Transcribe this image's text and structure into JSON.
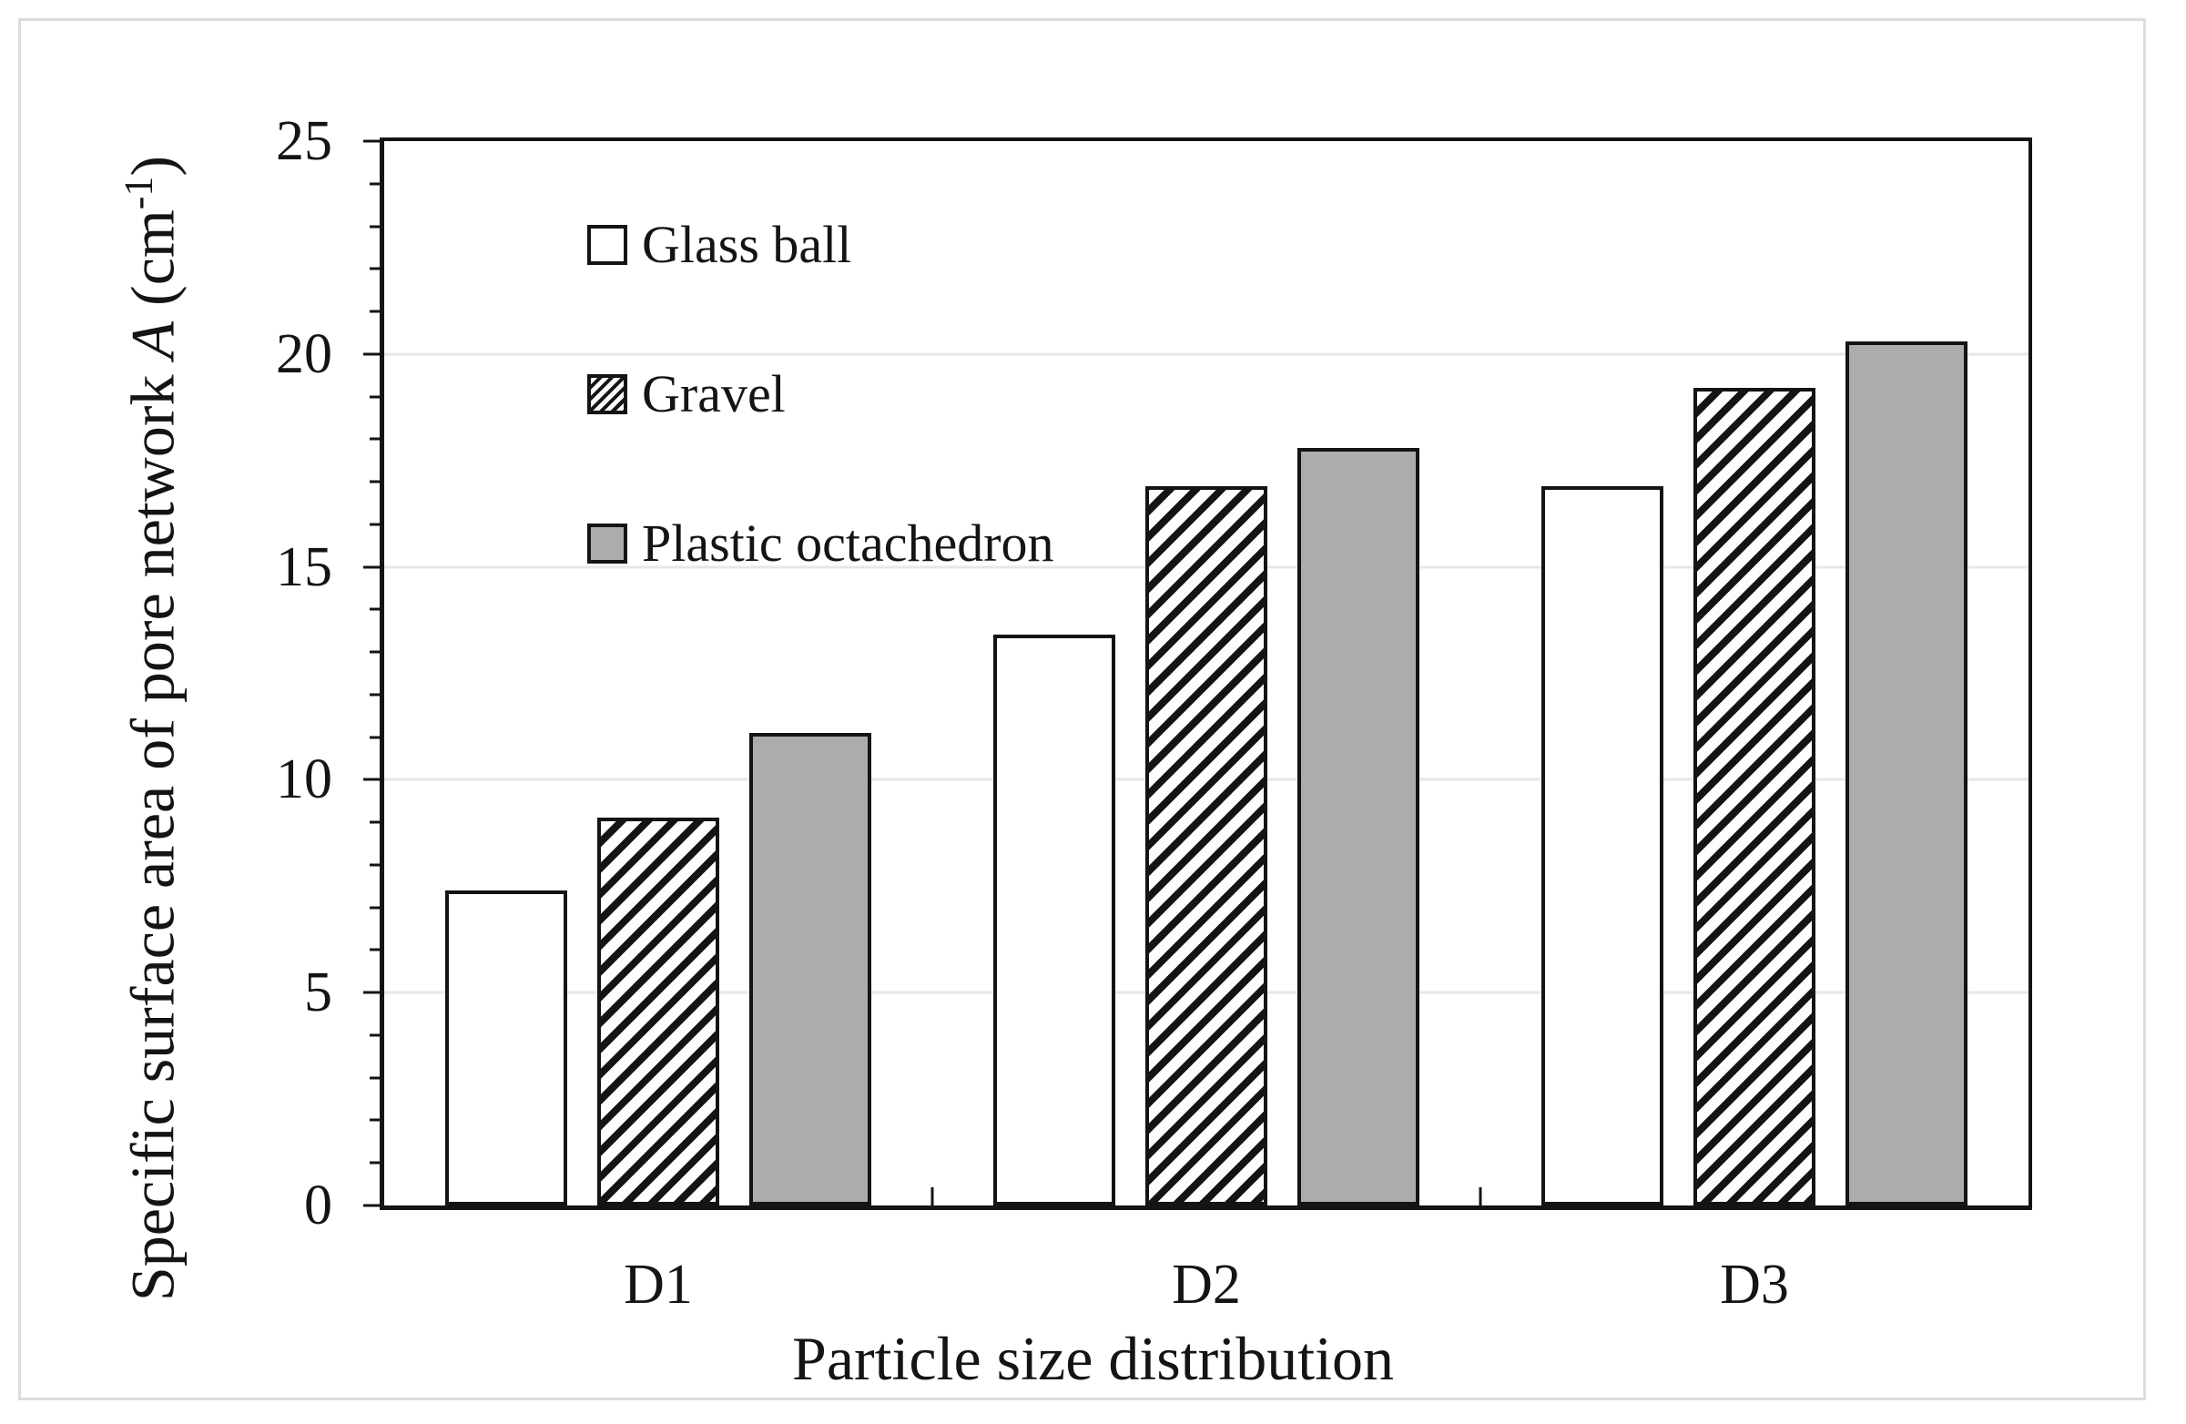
{
  "figure": {
    "y_axis_title": {
      "prefix": "Specific surface area of pore network ",
      "variable": "A",
      "unit_open": " (cm",
      "unit_sup": "-1",
      "unit_close": ")"
    },
    "x_axis_title": "Particle size distribution"
  },
  "chart_data": {
    "type": "bar",
    "title": "",
    "xlabel": "Particle size distribution",
    "ylabel": "Specific surface area of pore network A (cm-1)",
    "categories": [
      "D1",
      "D2",
      "D3"
    ],
    "series": [
      {
        "name": "Glass ball",
        "style": "white",
        "values": [
          7.4,
          13.4,
          16.9
        ]
      },
      {
        "name": "Gravel",
        "style": "hatched",
        "values": [
          9.1,
          16.9,
          19.2
        ]
      },
      {
        "name": "Plastic octachedron",
        "style": "gray",
        "values": [
          11.1,
          17.8,
          20.3
        ]
      }
    ],
    "ylim": [
      0,
      25
    ],
    "y_major_ticks": [
      0,
      5,
      10,
      15,
      20,
      25
    ],
    "y_minor_step": 1,
    "grid": "horizontal-major-light",
    "legend_position": "inside-top-left",
    "colors": {
      "bar_fill_white": "#ffffff",
      "bar_fill_gray": "#acacaa",
      "bar_border": "#141414",
      "gridline": "#e7e7e5",
      "axis": "#141414",
      "outer_frame": "#dcdcdc",
      "text": "#141414"
    }
  }
}
